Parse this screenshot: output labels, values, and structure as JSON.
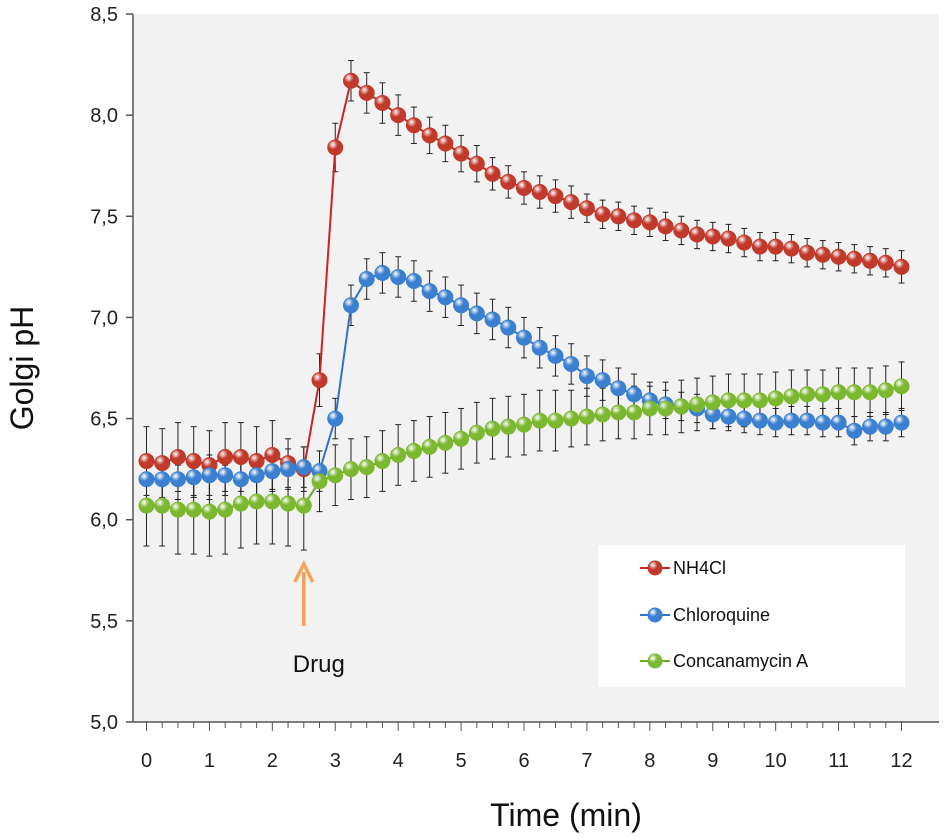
{
  "chart_data": {
    "type": "line",
    "xlabel": "Time (min)",
    "ylabel": "Golgi pH",
    "xlim": [
      -0.25,
      12.3
    ],
    "ylim": [
      5.0,
      8.5
    ],
    "xticks": [
      "0",
      "1",
      "2",
      "3",
      "4",
      "5",
      "6",
      "7",
      "8",
      "9",
      "10",
      "11",
      "12"
    ],
    "yticks": [
      "5,0",
      "5,5",
      "6,0",
      "6,5",
      "7,0",
      "7,5",
      "8,0",
      "8,5"
    ],
    "annotation": {
      "label": "Drug",
      "x": 2.5,
      "color": "#f4a15a"
    },
    "legend_position": "bottom-right",
    "x": [
      0,
      0.25,
      0.5,
      0.75,
      1,
      1.25,
      1.5,
      1.75,
      2,
      2.25,
      2.5,
      2.75,
      3,
      3.25,
      3.5,
      3.75,
      4,
      4.25,
      4.5,
      4.75,
      5,
      5.25,
      5.5,
      5.75,
      6,
      6.25,
      6.5,
      6.75,
      7,
      7.25,
      7.5,
      7.75,
      8,
      8.25,
      8.5,
      8.75,
      9,
      9.25,
      9.5,
      9.75,
      10,
      10.25,
      10.5,
      10.75,
      11,
      11.25,
      11.5,
      11.75,
      12
    ],
    "series": [
      {
        "name": "NH4Cl",
        "color": "#c0392b",
        "line_color": "#cc2222",
        "values": [
          6.29,
          6.28,
          6.31,
          6.29,
          6.27,
          6.31,
          6.31,
          6.29,
          6.32,
          6.28,
          6.25,
          6.69,
          7.84,
          8.17,
          8.11,
          8.06,
          8.0,
          7.95,
          7.9,
          7.86,
          7.81,
          7.76,
          7.71,
          7.67,
          7.64,
          7.62,
          7.6,
          7.57,
          7.54,
          7.51,
          7.5,
          7.48,
          7.47,
          7.45,
          7.43,
          7.41,
          7.4,
          7.39,
          7.37,
          7.35,
          7.35,
          7.34,
          7.32,
          7.31,
          7.3,
          7.29,
          7.28,
          7.27,
          7.25
        ],
        "error": [
          0.17,
          0.17,
          0.17,
          0.17,
          0.17,
          0.17,
          0.17,
          0.17,
          0.17,
          0.12,
          0.11,
          0.13,
          0.12,
          0.1,
          0.1,
          0.1,
          0.1,
          0.09,
          0.09,
          0.09,
          0.09,
          0.09,
          0.08,
          0.08,
          0.08,
          0.08,
          0.08,
          0.08,
          0.07,
          0.07,
          0.07,
          0.07,
          0.07,
          0.07,
          0.07,
          0.07,
          0.07,
          0.07,
          0.07,
          0.07,
          0.07,
          0.07,
          0.07,
          0.07,
          0.07,
          0.07,
          0.07,
          0.07,
          0.08
        ]
      },
      {
        "name": "Chloroquine",
        "color": "#3a7fd0",
        "line_color": "#2f74c8",
        "values": [
          6.2,
          6.2,
          6.2,
          6.21,
          6.22,
          6.22,
          6.2,
          6.22,
          6.24,
          6.25,
          6.26,
          6.24,
          6.5,
          7.06,
          7.19,
          7.22,
          7.2,
          7.18,
          7.13,
          7.1,
          7.06,
          7.02,
          6.99,
          6.95,
          6.9,
          6.85,
          6.81,
          6.77,
          6.71,
          6.69,
          6.65,
          6.62,
          6.59,
          6.57,
          6.56,
          6.55,
          6.52,
          6.51,
          6.5,
          6.49,
          6.48,
          6.49,
          6.49,
          6.48,
          6.48,
          6.44,
          6.46,
          6.46,
          6.48
        ],
        "error": [
          0.1,
          0.1,
          0.1,
          0.1,
          0.1,
          0.1,
          0.1,
          0.1,
          0.1,
          0.1,
          0.1,
          0.1,
          0.1,
          0.1,
          0.1,
          0.1,
          0.1,
          0.1,
          0.1,
          0.1,
          0.1,
          0.1,
          0.1,
          0.1,
          0.1,
          0.1,
          0.1,
          0.1,
          0.1,
          0.1,
          0.1,
          0.1,
          0.07,
          0.07,
          0.07,
          0.07,
          0.07,
          0.07,
          0.07,
          0.07,
          0.07,
          0.07,
          0.07,
          0.07,
          0.07,
          0.07,
          0.07,
          0.07,
          0.07
        ]
      },
      {
        "name": "Concanamycin A",
        "color": "#7cb82f",
        "line_color": "#6aa825",
        "values": [
          6.07,
          6.07,
          6.05,
          6.05,
          6.04,
          6.05,
          6.08,
          6.09,
          6.09,
          6.08,
          6.07,
          6.19,
          6.22,
          6.25,
          6.26,
          6.29,
          6.32,
          6.34,
          6.36,
          6.38,
          6.4,
          6.43,
          6.45,
          6.46,
          6.47,
          6.49,
          6.49,
          6.5,
          6.51,
          6.52,
          6.53,
          6.53,
          6.55,
          6.55,
          6.56,
          6.57,
          6.58,
          6.59,
          6.59,
          6.59,
          6.6,
          6.61,
          6.62,
          6.62,
          6.63,
          6.63,
          6.63,
          6.64,
          6.66
        ],
        "error": [
          0.2,
          0.2,
          0.22,
          0.22,
          0.22,
          0.22,
          0.22,
          0.21,
          0.21,
          0.21,
          0.22,
          0.15,
          0.15,
          0.15,
          0.15,
          0.15,
          0.15,
          0.15,
          0.15,
          0.15,
          0.15,
          0.15,
          0.15,
          0.15,
          0.15,
          0.15,
          0.15,
          0.14,
          0.14,
          0.13,
          0.13,
          0.13,
          0.13,
          0.13,
          0.13,
          0.13,
          0.13,
          0.13,
          0.13,
          0.13,
          0.13,
          0.13,
          0.12,
          0.12,
          0.12,
          0.12,
          0.12,
          0.12,
          0.12
        ]
      }
    ]
  }
}
